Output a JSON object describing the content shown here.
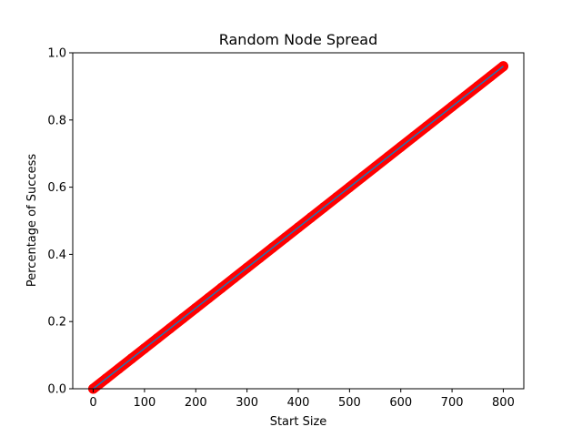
{
  "chart_data": {
    "type": "scatter",
    "title": "Random Node Spread",
    "xlabel": "Start Size",
    "ylabel": "Percentage of Success",
    "xlim": [
      -40,
      840
    ],
    "ylim": [
      0,
      1.0
    ],
    "xticks": [
      0,
      100,
      200,
      300,
      400,
      500,
      600,
      700,
      800
    ],
    "xtick_labels": [
      "0",
      "100",
      "200",
      "300",
      "400",
      "500",
      "600",
      "700",
      "800"
    ],
    "yticks": [
      0.0,
      0.2,
      0.4,
      0.6,
      0.8,
      1.0
    ],
    "ytick_labels": [
      "0.0",
      "0.2",
      "0.4",
      "0.6",
      "0.8",
      "1.0"
    ],
    "grid": false,
    "series": [
      {
        "kind": "scatter",
        "color": "#ff0000",
        "x": [
          0,
          25,
          50,
          75,
          100,
          125,
          150,
          175,
          200,
          225,
          250,
          275,
          300,
          325,
          350,
          375,
          400,
          425,
          450,
          475,
          500,
          525,
          550,
          575,
          600,
          625,
          650,
          675,
          700,
          725,
          750,
          775,
          800
        ],
        "y": [
          0.0,
          0.03,
          0.06,
          0.09,
          0.12,
          0.15,
          0.18,
          0.21,
          0.24,
          0.27,
          0.3,
          0.33,
          0.36,
          0.39,
          0.42,
          0.45,
          0.48,
          0.51,
          0.54,
          0.57,
          0.6,
          0.63,
          0.66,
          0.69,
          0.72,
          0.75,
          0.78,
          0.81,
          0.84,
          0.87,
          0.9,
          0.93,
          0.96
        ]
      },
      {
        "kind": "line",
        "color": "#1f77b4",
        "x": [
          0,
          800
        ],
        "y": [
          0.0,
          0.96
        ]
      }
    ]
  }
}
